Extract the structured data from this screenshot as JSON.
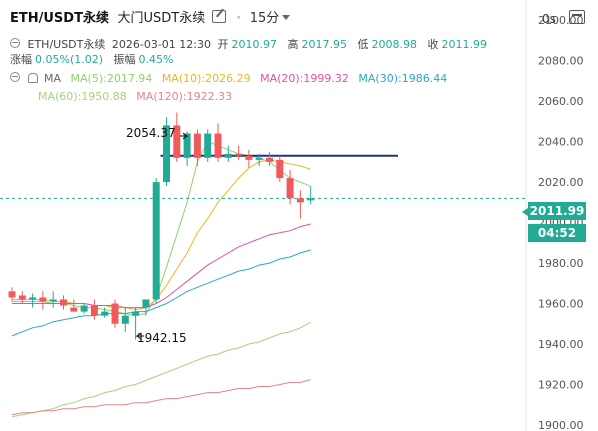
{
  "header": {
    "symbol": "ETH/USDT永续",
    "exchange": "大门USDT永续",
    "interval": "15分",
    "time_mode": "0s"
  },
  "ohlc": {
    "pair_label": "ETH/USDT永续",
    "datetime": "2026-03-01 12:30",
    "open_label": "开",
    "open": "2010.97",
    "high_label": "高",
    "high": "2017.95",
    "low_label": "低",
    "low": "2008.98",
    "close_label": "收",
    "close": "2011.99",
    "change_label": "涨幅",
    "change": "0.05%(1.02)",
    "amplitude_label": "振幅",
    "amplitude": "0.45%"
  },
  "indicators": {
    "name": "MA",
    "items": [
      {
        "label": "MA(5):2017.94",
        "color": "#8fd36b"
      },
      {
        "label": "MA(10):2026.29",
        "color": "#f2b51f"
      },
      {
        "label": "MA(20):1999.32",
        "color": "#e052a6"
      },
      {
        "label": "MA(30):1986.44",
        "color": "#2aa8c9"
      },
      {
        "label": "MA(60):1950.88",
        "color": "#a4d37b"
      },
      {
        "label": "MA(120):1922.33",
        "color": "#e68585"
      }
    ]
  },
  "price_tags": {
    "last_price": "2011.99",
    "countdown": "04:52"
  },
  "annotations": {
    "high": "2054.37",
    "low": "1942.15"
  },
  "chart_data": {
    "type": "candlestick",
    "y_axis_ticks": [
      "2100.00",
      "2080.00",
      "2060.00",
      "2040.00",
      "2020.00",
      "2000.00",
      "1980.00",
      "1960.00",
      "1940.00",
      "1920.00",
      "1900.00"
    ],
    "ylim": [
      1897,
      2110
    ],
    "colors": {
      "up": "#22ab94",
      "down": "#f05a5a"
    },
    "horizontal_line": 2033,
    "last_price_line": 2011.99,
    "candles": [
      {
        "o": 1966.0,
        "h": 1968.0,
        "l": 1961.0,
        "c": 1963.0
      },
      {
        "o": 1964.0,
        "h": 1966.0,
        "l": 1960.0,
        "c": 1962.0
      },
      {
        "o": 1962.0,
        "h": 1965.0,
        "l": 1958.0,
        "c": 1963.0
      },
      {
        "o": 1963.0,
        "h": 1966.0,
        "l": 1957.0,
        "c": 1961.0
      },
      {
        "o": 1961.0,
        "h": 1966.0,
        "l": 1958.0,
        "c": 1962.0
      },
      {
        "o": 1962.0,
        "h": 1964.0,
        "l": 1957.0,
        "c": 1959.0
      },
      {
        "o": 1958.0,
        "h": 1962.0,
        "l": 1956.0,
        "c": 1956.0
      },
      {
        "o": 1956.0,
        "h": 1960.0,
        "l": 1955.0,
        "c": 1959.0
      },
      {
        "o": 1959.0,
        "h": 1962.0,
        "l": 1952.0,
        "c": 1954.0
      },
      {
        "o": 1954.0,
        "h": 1958.0,
        "l": 1953.0,
        "c": 1956.0
      },
      {
        "o": 1960.0,
        "h": 1962.0,
        "l": 1948.0,
        "c": 1950.0
      },
      {
        "o": 1950.0,
        "h": 1958.0,
        "l": 1946.0,
        "c": 1954.0
      },
      {
        "o": 1954.0,
        "h": 1958.0,
        "l": 1942.15,
        "c": 1956.0
      },
      {
        "o": 1958.0,
        "h": 1962.0,
        "l": 1954.0,
        "c": 1962.0
      },
      {
        "o": 1962.0,
        "h": 2022.0,
        "l": 1960.0,
        "c": 2020.0
      },
      {
        "o": 2020.0,
        "h": 2052.0,
        "l": 2018.0,
        "c": 2048.0
      },
      {
        "o": 2048.0,
        "h": 2054.37,
        "l": 2030.0,
        "c": 2032.0
      },
      {
        "o": 2032.0,
        "h": 2045.0,
        "l": 2028.0,
        "c": 2044.0
      },
      {
        "o": 2044.0,
        "h": 2046.0,
        "l": 2028.0,
        "c": 2032.0
      },
      {
        "o": 2032.0,
        "h": 2046.0,
        "l": 2030.0,
        "c": 2044.0
      },
      {
        "o": 2044.0,
        "h": 2049.0,
        "l": 2030.0,
        "c": 2032.0
      },
      {
        "o": 2032.0,
        "h": 2038.0,
        "l": 2030.0,
        "c": 2034.0
      },
      {
        "o": 2034.0,
        "h": 2038.0,
        "l": 2031.0,
        "c": 2033.0
      },
      {
        "o": 2033.0,
        "h": 2036.0,
        "l": 2027.0,
        "c": 2031.0
      },
      {
        "o": 2031.0,
        "h": 2034.0,
        "l": 2028.0,
        "c": 2032.0
      },
      {
        "o": 2032.0,
        "h": 2035.0,
        "l": 2028.0,
        "c": 2030.0
      },
      {
        "o": 2031.0,
        "h": 2033.0,
        "l": 2020.0,
        "c": 2022.0
      },
      {
        "o": 2022.0,
        "h": 2026.0,
        "l": 2009.0,
        "c": 2012.0
      },
      {
        "o": 2012.0,
        "h": 2016.0,
        "l": 2002.0,
        "c": 2010.0
      },
      {
        "o": 2010.97,
        "h": 2017.95,
        "l": 2008.98,
        "c": 2011.99
      }
    ],
    "ma_series": [
      {
        "label": "MA(5)",
        "color": "#8fd36b",
        "values": [
          1961,
          1961,
          1961,
          1961,
          1960,
          1960,
          1959,
          1958,
          1958,
          1957,
          1956,
          1955,
          1954,
          1955,
          1963,
          1978,
          1994,
          2010,
          2030,
          2040,
          2038,
          2036,
          2034,
          2033,
          2032,
          2030,
          2026,
          2022,
          2020,
          2017.94
        ]
      },
      {
        "label": "MA(10)",
        "color": "#f2b51f",
        "values": [
          1962,
          1962,
          1962,
          1962,
          1961,
          1961,
          1960,
          1960,
          1959,
          1959,
          1958,
          1958,
          1957,
          1958,
          1962,
          1969,
          1977,
          1985,
          1995,
          2002,
          2010,
          2016,
          2022,
          2027,
          2030,
          2031,
          2030,
          2029,
          2028,
          2026.29
        ]
      },
      {
        "label": "MA(20)",
        "color": "#e052a6",
        "values": [
          1960,
          1960,
          1960,
          1960,
          1960,
          1960,
          1960,
          1960,
          1959,
          1959,
          1959,
          1958,
          1958,
          1958,
          1960,
          1963,
          1967,
          1971,
          1975,
          1979,
          1982,
          1985,
          1988,
          1990,
          1992,
          1994,
          1995,
          1996,
          1998,
          1999.32
        ]
      },
      {
        "label": "MA(30)",
        "color": "#2aa8c9",
        "values": [
          1944,
          1946,
          1948,
          1949,
          1951,
          1952,
          1953,
          1954,
          1954,
          1955,
          1955,
          1955,
          1956,
          1956,
          1958,
          1960,
          1963,
          1966,
          1968,
          1970,
          1972,
          1974,
          1976,
          1977,
          1979,
          1980,
          1982,
          1983,
          1985,
          1986.44
        ]
      },
      {
        "label": "MA(60)",
        "color": "#a4d37b",
        "values": [
          1904,
          1905,
          1906,
          1907,
          1908,
          1910,
          1911,
          1913,
          1914,
          1916,
          1917,
          1919,
          1920,
          1922,
          1924,
          1926,
          1928,
          1930,
          1932,
          1934,
          1935,
          1937,
          1938,
          1940,
          1941,
          1943,
          1945,
          1946,
          1948,
          1950.88
        ]
      },
      {
        "label": "MA(120)",
        "color": "#e68585",
        "values": [
          1905,
          1906,
          1906,
          1907,
          1907,
          1908,
          1908,
          1909,
          1909,
          1910,
          1910,
          1910,
          1911,
          1911,
          1912,
          1913,
          1913,
          1914,
          1915,
          1916,
          1916,
          1917,
          1918,
          1918,
          1919,
          1919,
          1920,
          1921,
          1921,
          1922.33
        ]
      }
    ]
  }
}
